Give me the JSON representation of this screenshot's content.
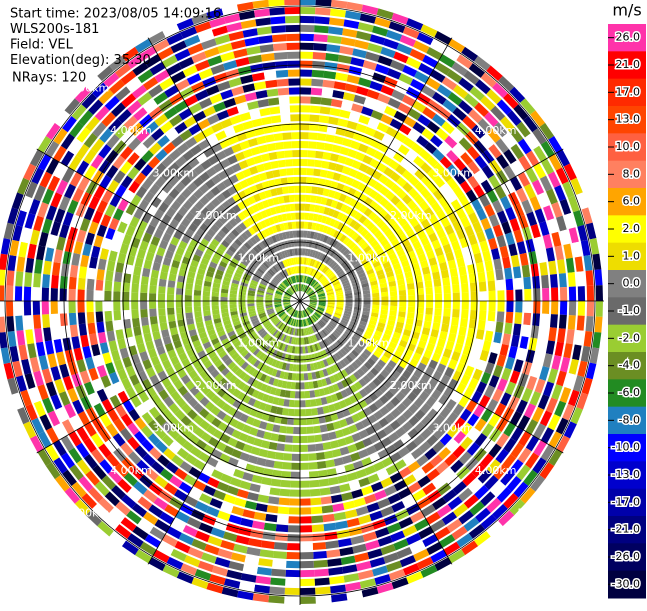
{
  "chart_data": {
    "type": "ppi",
    "header": [
      "Start time: 2023/08/05 14:09:16",
      "WLS200s-181",
      "Field: VEL",
      "Elevation(deg): 35.30",
      "NRays: 120"
    ],
    "range_rings": [
      "1.00km",
      "2.00km",
      "3.00km",
      "4.00km",
      "5.00km"
    ],
    "colorbar_unit": "m/s",
    "colorbar_ticks": [
      {
        "value": 26,
        "label": "26.0"
      },
      {
        "value": 21,
        "label": "21.0"
      },
      {
        "value": 17,
        "label": "17.0"
      },
      {
        "value": 13,
        "label": "13.0"
      },
      {
        "value": 10,
        "label": "10.0"
      },
      {
        "value": 8,
        "label": "8.0"
      },
      {
        "value": 6,
        "label": "6.0"
      },
      {
        "value": 2,
        "label": "2.0"
      },
      {
        "value": 1,
        "label": "1.0"
      },
      {
        "value": 0,
        "label": "0.0"
      },
      {
        "value": -1,
        "label": "-1.0"
      },
      {
        "value": -2,
        "label": "-2.0"
      },
      {
        "value": -4,
        "label": "-4.0"
      },
      {
        "value": -6,
        "label": "-6.0"
      },
      {
        "value": -8,
        "label": "-8.0"
      },
      {
        "value": -10,
        "label": "-10.0"
      },
      {
        "value": -13,
        "label": "-13.0"
      },
      {
        "value": -17,
        "label": "-17.0"
      },
      {
        "value": -21,
        "label": "-21.0"
      },
      {
        "value": -26,
        "label": "-26.0"
      },
      {
        "value": -30,
        "label": "-30.0"
      }
    ],
    "colorbar_colors": [
      "#ff33aa",
      "#ff0000",
      "#ff2a00",
      "#ff4500",
      "#ff6040",
      "#ff8060",
      "#ffa500",
      "#ffff00",
      "#eedd00",
      "#808080",
      "#6a6a6a",
      "#9acd32",
      "#6b8e23",
      "#228b22",
      "#2080c0",
      "#0000ff",
      "#0000cd",
      "#0000aa",
      "#000080",
      "#000060",
      "#000040"
    ]
  }
}
